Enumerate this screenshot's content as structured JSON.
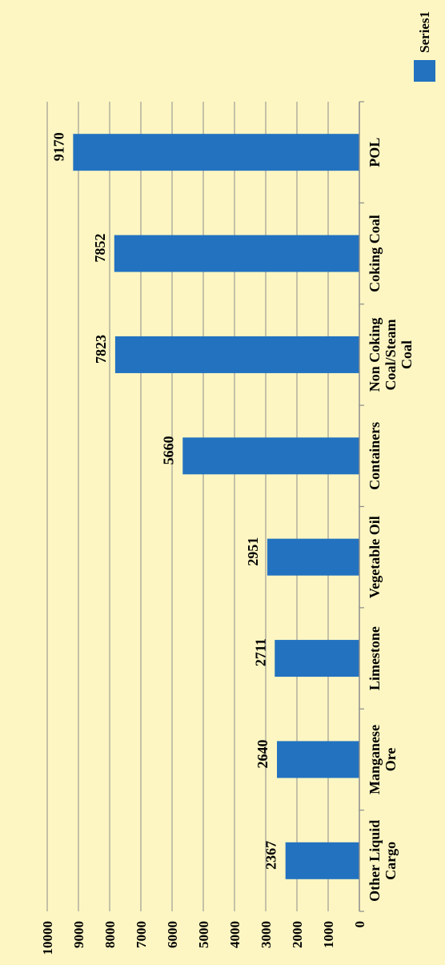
{
  "chart_data": {
    "type": "bar",
    "orientation": "vertical",
    "rotated": "90deg-clockwise",
    "categories": [
      "Other Liquid Cargo",
      "Manganese Ore",
      "Limestone",
      "Vegetable Oil",
      "Containers",
      "Non Coking Coal/Steam Coal",
      "Coking Coal",
      "POL"
    ],
    "category_lines": [
      [
        "Other Liquid",
        "Cargo"
      ],
      [
        "Manganese",
        "Ore"
      ],
      [
        "Limestone"
      ],
      [
        "Vegetable Oil"
      ],
      [
        "Containers"
      ],
      [
        "Non Coking",
        "Coal/Steam",
        "Coal"
      ],
      [
        "Coking Coal"
      ],
      [
        "POL"
      ]
    ],
    "series": [
      {
        "name": "Series1",
        "values": [
          2367,
          2640,
          2711,
          2951,
          5660,
          7823,
          7852,
          9170
        ],
        "color": "#2272c0"
      }
    ],
    "data_labels": [
      "2367",
      "2640",
      "2711",
      "2951",
      "5660",
      "7823",
      "7852",
      "9170"
    ],
    "ylim": [
      0,
      10000
    ],
    "yticks": [
      "0",
      "1000",
      "2000",
      "3000",
      "4000",
      "5000",
      "6000",
      "7000",
      "8000",
      "9000",
      "10000"
    ],
    "ytick_values": [
      0,
      1000,
      2000,
      3000,
      4000,
      5000,
      6000,
      7000,
      8000,
      9000,
      10000
    ],
    "grid": true,
    "legend": "right",
    "title": "",
    "xlabel": "",
    "ylabel": "",
    "colors": {
      "background": "#fdf6c2",
      "gridline": "#8c8c8c",
      "bar": "#2272c0"
    }
  }
}
